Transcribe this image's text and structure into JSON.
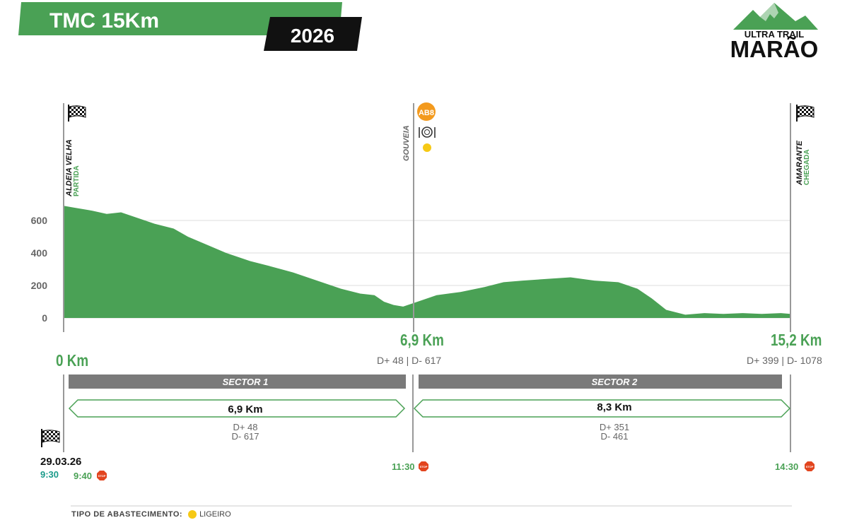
{
  "header": {
    "race_title": "TMC 15Km",
    "year": "2026"
  },
  "logo": {
    "line1": "ULTRA TRAIL",
    "line2": "MARÃO"
  },
  "colors": {
    "green": "#4aa155",
    "dark_green": "#2e7d3b",
    "black": "#111111",
    "sector_gray": "#7a7a7a",
    "orange": "#f39a1e",
    "yellow": "#f6c915",
    "stop_red": "#e2451f",
    "teal": "#1a9a8a"
  },
  "locations": [
    {
      "name": "ALDEIA VELHA",
      "sub": "PARTIDA",
      "icon": "checkered-flag-icon"
    },
    {
      "name": "GOUVEIA",
      "sub": "",
      "badge": "AB8",
      "icons": [
        "food-plate-icon",
        "light-aid-dot-icon"
      ]
    },
    {
      "name": "AMARANTE",
      "sub": "CHEGADA",
      "icon": "checkered-flag-icon"
    }
  ],
  "km_marks": [
    {
      "label": "0 Km",
      "elev": ""
    },
    {
      "label": "6,9 Km",
      "elev": "D+ 48 | D- 617"
    },
    {
      "label": "15,2 Km",
      "elev": "D+ 399 | D- 1078"
    }
  ],
  "sectors": [
    {
      "name": "SECTOR 1",
      "distance": "6,9 Km",
      "d_plus": "D+ 48",
      "d_minus": "D- 617"
    },
    {
      "name": "SECTOR 2",
      "distance": "8,3 Km",
      "d_plus": "D+ 351",
      "d_minus": "D- 461"
    }
  ],
  "schedule": {
    "date": "29.03.26",
    "start_time": "9:30",
    "start_stop": "9:40",
    "cp1_stop": "11:30",
    "finish_stop": "14:30",
    "stop_label": "STOP"
  },
  "legend": {
    "title": "TIPO DE ABASTECIMENTO:",
    "items": [
      {
        "label": "LIGEIRO",
        "color": "#f6c915"
      }
    ]
  },
  "chart_data": {
    "type": "area",
    "title": "",
    "xlabel": "",
    "ylabel": "",
    "xlim": [
      0,
      15.2
    ],
    "ylim": [
      0,
      700
    ],
    "yticks": [
      0,
      200,
      400,
      600
    ],
    "grid": true,
    "x": [
      0,
      0.2,
      0.6,
      0.9,
      1.2,
      1.5,
      1.7,
      1.9,
      2.3,
      2.6,
      3.0,
      3.4,
      3.9,
      4.3,
      4.8,
      5.3,
      5.8,
      6.2,
      6.5,
      6.7,
      6.9,
      7.1,
      7.4,
      7.8,
      8.3,
      8.8,
      9.2,
      9.6,
      10.1,
      10.6,
      11.1,
      11.6,
      12.0,
      12.3,
      12.6,
      13.0,
      13.4,
      13.8,
      14.2,
      14.6,
      15.0,
      15.2
    ],
    "y": [
      690,
      680,
      660,
      640,
      650,
      620,
      600,
      580,
      550,
      500,
      450,
      400,
      350,
      320,
      280,
      230,
      180,
      150,
      140,
      100,
      80,
      70,
      100,
      140,
      160,
      190,
      220,
      230,
      240,
      250,
      230,
      220,
      180,
      120,
      50,
      20,
      30,
      25,
      30,
      25,
      30,
      25
    ]
  }
}
